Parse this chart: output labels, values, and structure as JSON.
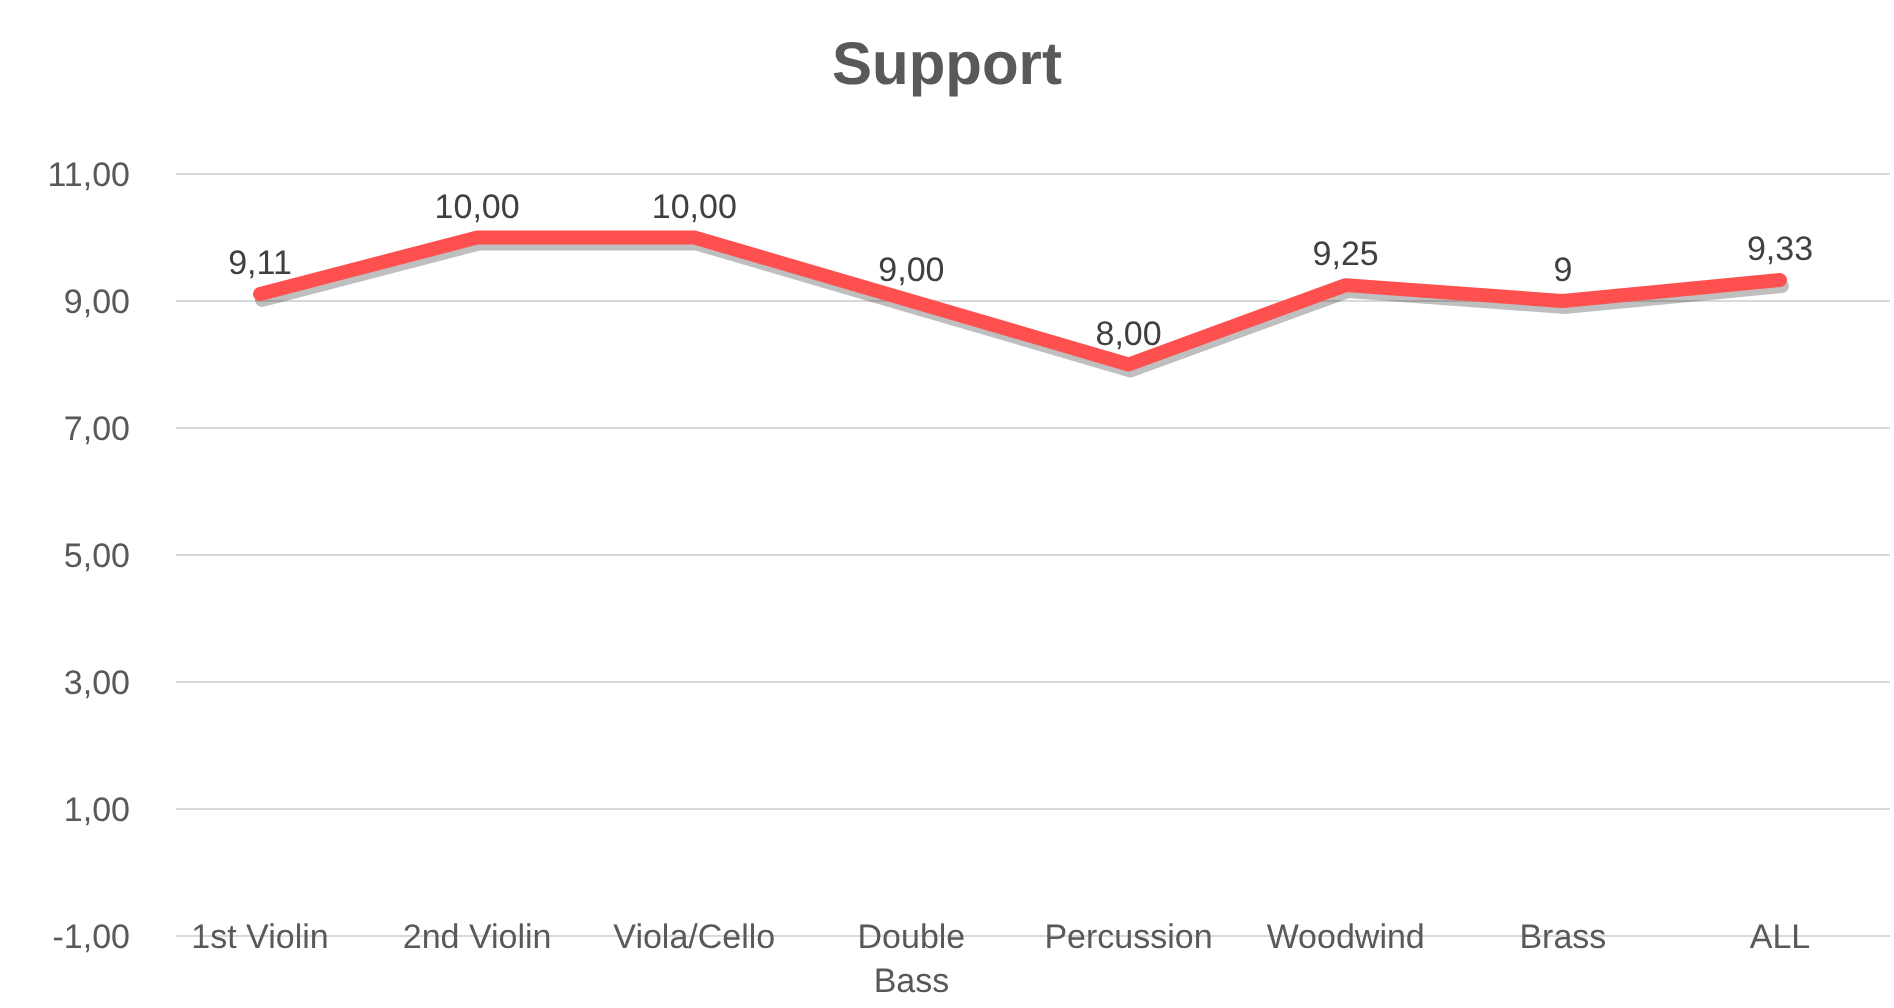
{
  "chart_data": {
    "type": "line",
    "title": "Support",
    "categories": [
      "1st Violin",
      "2nd Violin",
      "Viola/Cello",
      "Double Bass",
      "Percussion",
      "Woodwind",
      "Brass",
      "ALL"
    ],
    "series": [
      {
        "color": "#ff5050",
        "values": [
          9.11,
          10,
          10,
          9,
          8,
          9.25,
          9,
          9.33
        ],
        "value_labels": [
          "9,11",
          "10,00",
          "10,00",
          "9,00",
          "8,00",
          "9,25",
          "9",
          "9,33"
        ]
      }
    ],
    "ylim": [
      -1,
      11
    ],
    "yticks": [
      {
        "value": -1,
        "label": "-1,00"
      },
      {
        "value": 1,
        "label": "1,00"
      },
      {
        "value": 3,
        "label": "3,00"
      },
      {
        "value": 5,
        "label": "5,00"
      },
      {
        "value": 7,
        "label": "7,00"
      },
      {
        "value": 9,
        "label": "9,00"
      },
      {
        "value": 11,
        "label": "11,00"
      }
    ],
    "grid": "y",
    "marker": "none",
    "line_style": "solid"
  }
}
